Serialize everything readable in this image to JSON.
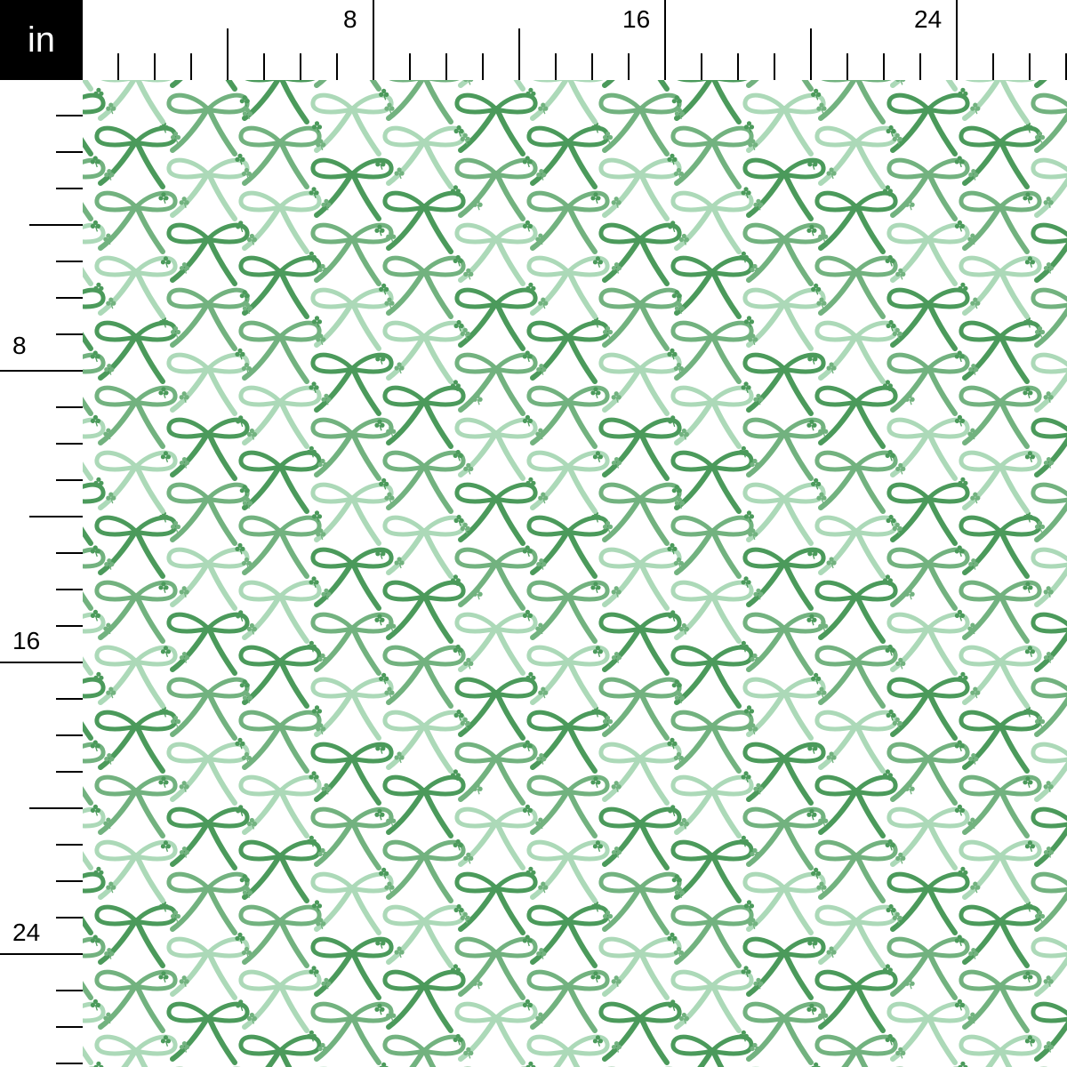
{
  "ruler": {
    "unit": "in",
    "top_labels": [
      "8",
      "16",
      "24"
    ],
    "left_labels": [
      "8",
      "16",
      "24"
    ]
  },
  "pattern": {
    "motifs": [
      "bow",
      "shamrock"
    ],
    "colors": {
      "dark_green": "#4b9a5b",
      "medium_green": "#72b27f",
      "light_green": "#acd9b8",
      "background": "#ffffff"
    }
  }
}
